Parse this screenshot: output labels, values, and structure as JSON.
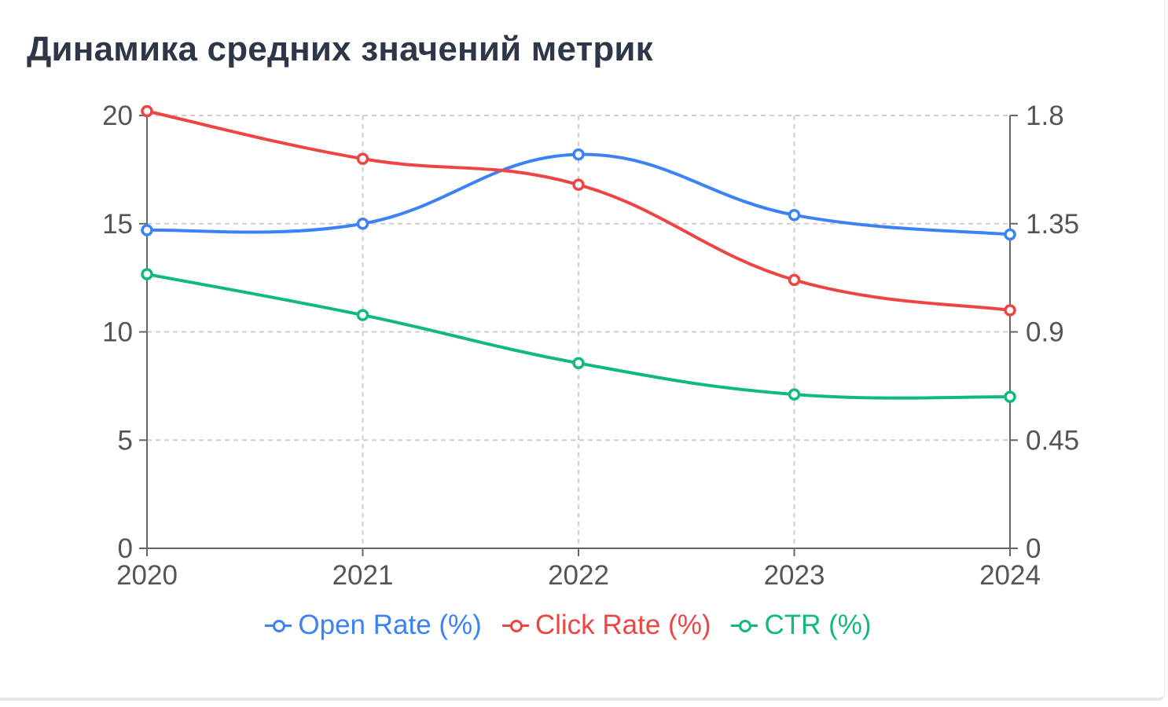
{
  "header": {
    "title": "Динамика средних значений метрик"
  },
  "chart_data": {
    "type": "line",
    "title": "Динамика средних значений метрик",
    "x": [
      "2020",
      "2021",
      "2022",
      "2023",
      "2024"
    ],
    "y_left": {
      "ticks": [
        "0",
        "5",
        "10",
        "15",
        "20"
      ],
      "range": [
        0,
        20
      ]
    },
    "y_right": {
      "ticks": [
        "0",
        "0.45",
        "0.9",
        "1.35",
        "1.8"
      ],
      "range": [
        0,
        1.8
      ]
    },
    "grid": true,
    "legend_position": "bottom",
    "series": [
      {
        "name": "Open Rate (%)",
        "axis": "left",
        "color": "#3b82f6",
        "values": [
          14.7,
          15.0,
          18.2,
          15.4,
          14.5
        ]
      },
      {
        "name": "Click Rate (%)",
        "axis": "left",
        "color": "#ef4444",
        "values": [
          20.2,
          18.0,
          16.8,
          12.4,
          11.0
        ]
      },
      {
        "name": "CTR (%)",
        "axis": "right",
        "color": "#10b981",
        "values": [
          1.14,
          0.97,
          0.77,
          0.64,
          0.63
        ]
      }
    ]
  }
}
